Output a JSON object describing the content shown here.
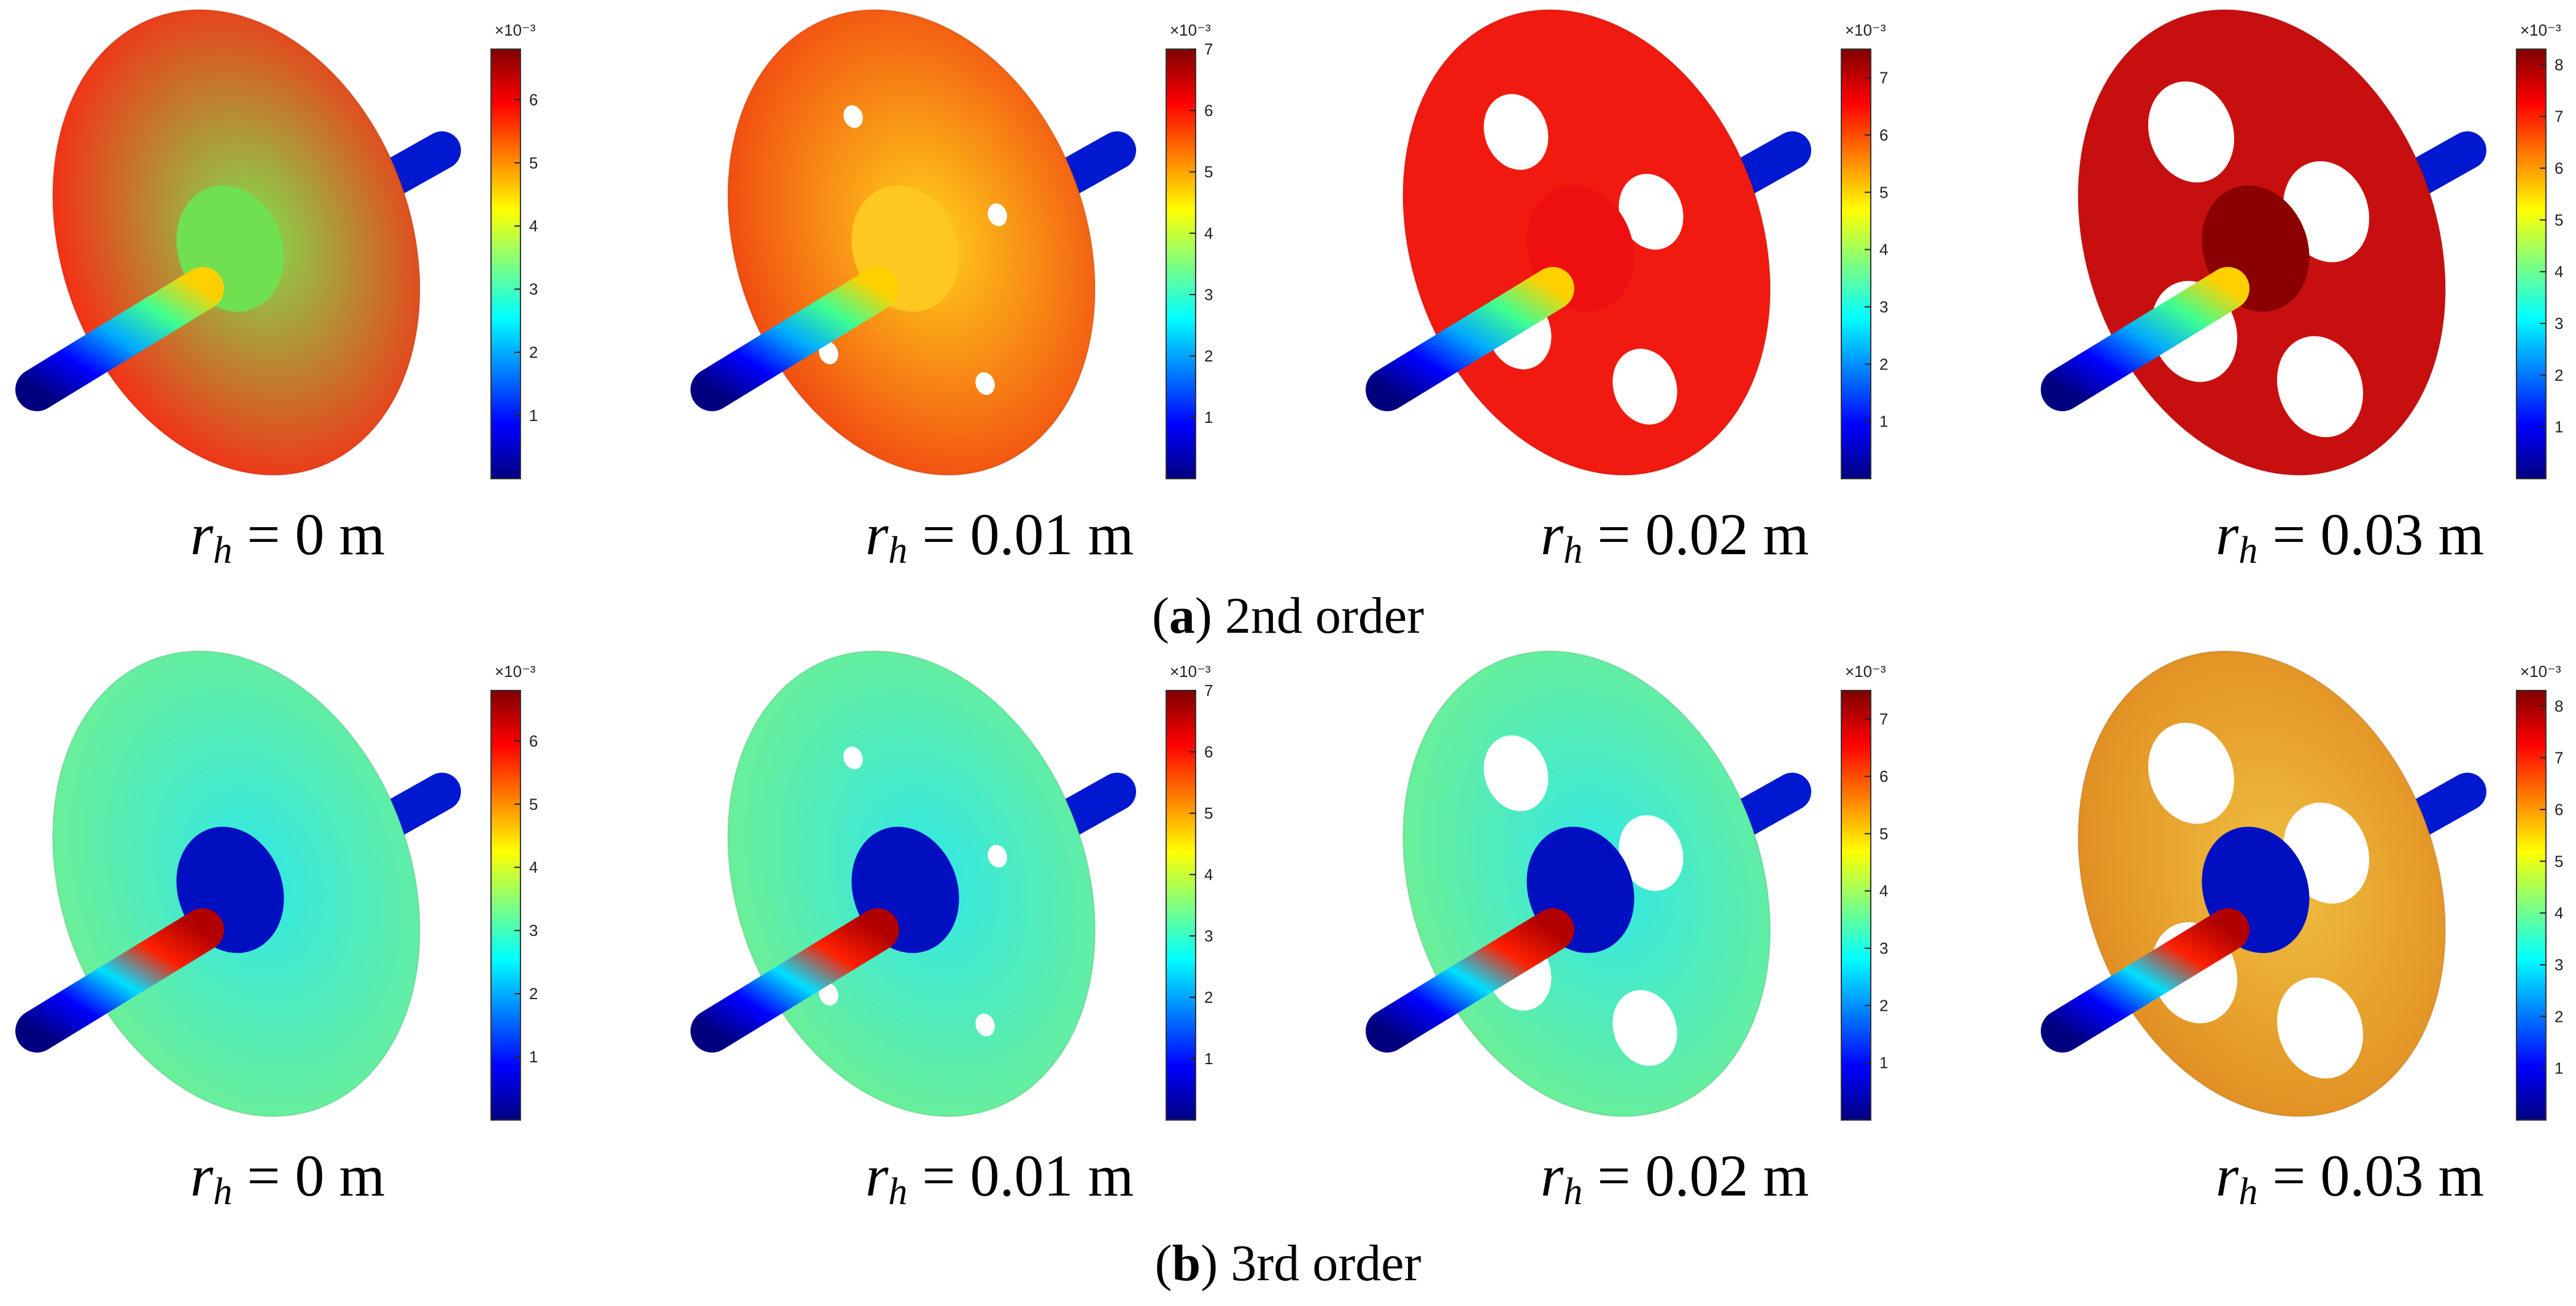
{
  "rows": [
    {
      "caption_letter": "a",
      "caption_text": "2nd order",
      "panels": [
        {
          "r_value": "0",
          "unit": "m",
          "colorbar_max": 6.8,
          "ticks": [
            "1",
            "2",
            "3",
            "4",
            "5",
            "6"
          ],
          "exponent": "×10⁻³",
          "holes": 0
        },
        {
          "r_value": "0.01",
          "unit": "m",
          "colorbar_max": 7,
          "ticks": [
            "1",
            "2",
            "3",
            "4",
            "5",
            "6",
            "7"
          ],
          "exponent": "×10⁻³",
          "holes": 4
        },
        {
          "r_value": "0.02",
          "unit": "m",
          "colorbar_max": 7.5,
          "ticks": [
            "1",
            "2",
            "3",
            "4",
            "5",
            "6",
            "7"
          ],
          "exponent": "×10⁻³",
          "holes": 4
        },
        {
          "r_value": "0.03",
          "unit": "m",
          "colorbar_max": 8.3,
          "ticks": [
            "1",
            "2",
            "3",
            "4",
            "5",
            "6",
            "7",
            "8"
          ],
          "exponent": "×10⁻³",
          "holes": 4
        }
      ]
    },
    {
      "caption_letter": "b",
      "caption_text": "3rd order",
      "panels": [
        {
          "r_value": "0",
          "unit": "m",
          "colorbar_max": 6.8,
          "ticks": [
            "1",
            "2",
            "3",
            "4",
            "5",
            "6"
          ],
          "exponent": "×10⁻³",
          "holes": 0
        },
        {
          "r_value": "0.01",
          "unit": "m",
          "colorbar_max": 7,
          "ticks": [
            "1",
            "2",
            "3",
            "4",
            "5",
            "6",
            "7"
          ],
          "exponent": "×10⁻³",
          "holes": 4
        },
        {
          "r_value": "0.02",
          "unit": "m",
          "colorbar_max": 7.5,
          "ticks": [
            "1",
            "2",
            "3",
            "4",
            "5",
            "6",
            "7"
          ],
          "exponent": "×10⁻³",
          "holes": 4
        },
        {
          "r_value": "0.03",
          "unit": "m",
          "colorbar_max": 8.3,
          "ticks": [
            "1",
            "2",
            "3",
            "4",
            "5",
            "6",
            "7",
            "8"
          ],
          "exponent": "×10⁻³",
          "holes": 4
        }
      ]
    }
  ],
  "label_var": "r",
  "label_sub": "h",
  "label_eq": "=",
  "colors": {
    "jet": [
      "#00007f",
      "#0000ff",
      "#007fff",
      "#00ffff",
      "#7fff7f",
      "#ffff00",
      "#ff7f00",
      "#ff0000",
      "#7f0000"
    ],
    "row_a_disk": [
      "#f07a2a",
      "#f5c21a",
      "#f01a10",
      "#c80f0f"
    ],
    "row_b_disk": [
      "#3fe8e0",
      "#3ff0e0",
      "#5cf0c0",
      "#f5b040"
    ]
  }
}
